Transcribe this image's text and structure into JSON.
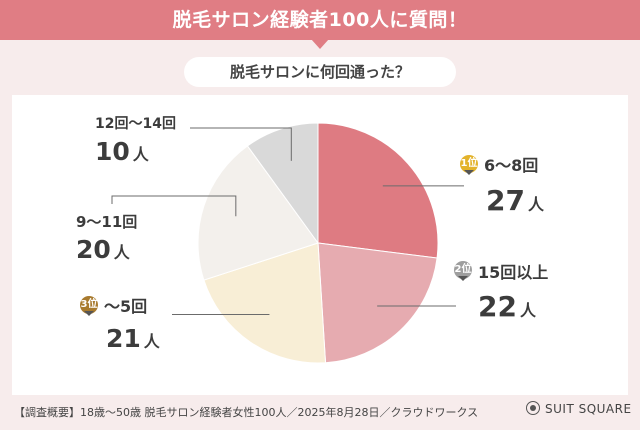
{
  "header": {
    "title": "脱毛サロン経験者100人に質問！",
    "question": "脱毛サロンに何回通った？"
  },
  "colors": {
    "banner": "#e07d84",
    "background": "#f7ecec",
    "gold": "#e3b32c",
    "silver": "#9e9e9e",
    "bronze": "#a87a2e"
  },
  "chart_data": {
    "type": "pie",
    "unit": "人",
    "slices": [
      {
        "label": "6〜8回",
        "value": 27,
        "color": "#de7b82",
        "rank": "1位"
      },
      {
        "label": "15回以上",
        "value": 22,
        "color": "#e6abb0",
        "rank": "2位"
      },
      {
        "label": "〜5回",
        "value": 21,
        "color": "#f8eed6",
        "rank": "3位"
      },
      {
        "label": "9〜11回",
        "value": 20,
        "color": "#f3f0ec",
        "rank": ""
      },
      {
        "label": "12回〜14回",
        "value": 10,
        "color": "#d9d9d9",
        "rank": ""
      }
    ],
    "start": "12 o'clock",
    "direction": "clockwise"
  },
  "labels": {
    "s0": {
      "cat": "6〜8回",
      "val": "27",
      "unit": "人",
      "rank": "1位"
    },
    "s1": {
      "cat": "15回以上",
      "val": "22",
      "unit": "人",
      "rank": "2位"
    },
    "s2": {
      "cat": "〜5回",
      "val": "21",
      "unit": "人",
      "rank": "3位"
    },
    "s3": {
      "cat": "9〜11回",
      "val": "20",
      "unit": "人"
    },
    "s4": {
      "cat": "12回〜14回",
      "val": "10",
      "unit": "人"
    }
  },
  "footer": {
    "note": "【調査概要】18歳〜50歳 脱毛サロン経験者女性100人／2025年8月28日／クラウドワークス",
    "brand": "SUIT SQUARE"
  }
}
